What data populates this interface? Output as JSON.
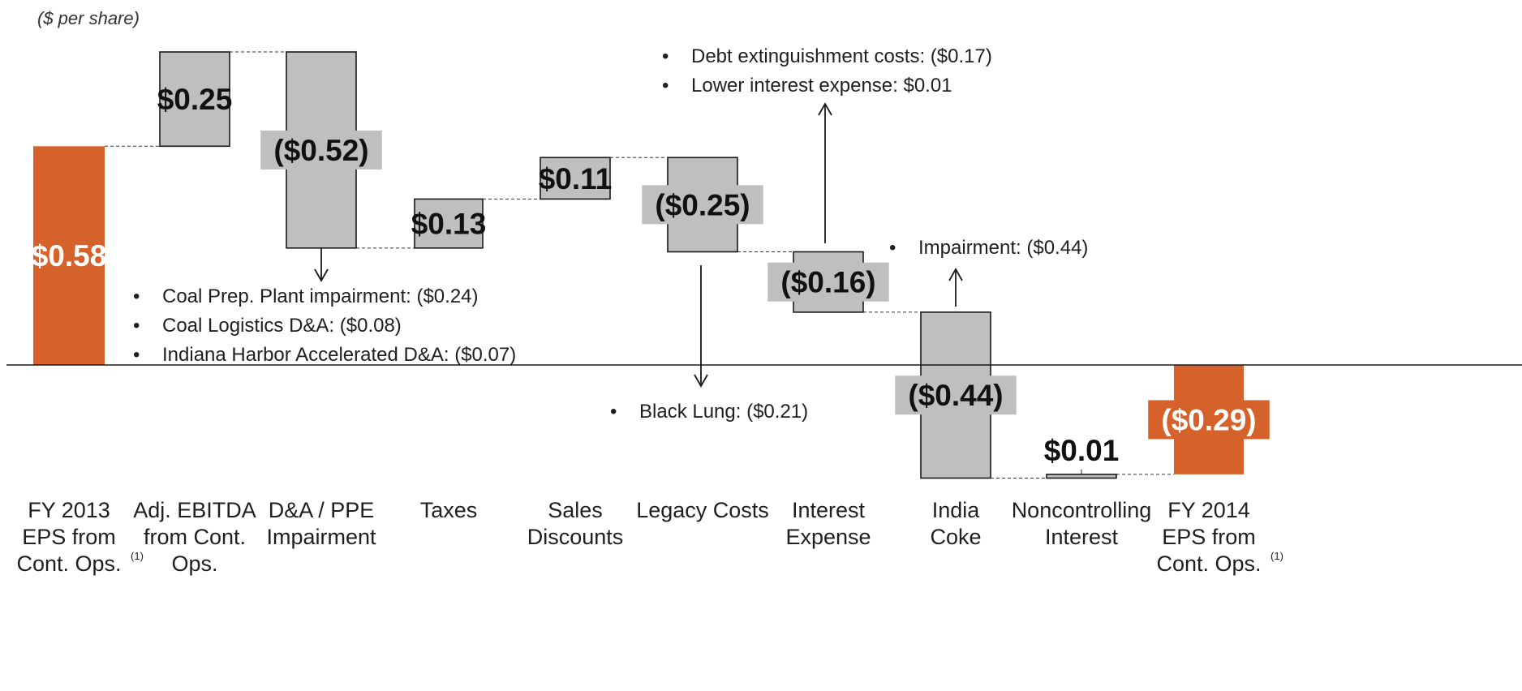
{
  "unit_note": "($ per share)",
  "colors": {
    "endpoint": "#d4622a",
    "step": "#bfbfbf",
    "label_bg": "#bfbfbf",
    "connector": "#333333"
  },
  "chart_data": {
    "type": "bar",
    "subtype": "waterfall",
    "categories": [
      "FY 2013 EPS from Cont. Ops.(1)",
      "Adj. EBITDA from Cont. Ops.",
      "D&A / PPE Impairment",
      "Taxes",
      "Sales Discounts",
      "Legacy Costs",
      "Interest Expense",
      "India Coke",
      "Noncontrolling Interest",
      "FY 2014 EPS from Cont. Ops.(1)"
    ],
    "category_lines": [
      [
        "FY 2013",
        "EPS from",
        "Cont. Ops."
      ],
      [
        "Adj. EBITDA",
        "from Cont.",
        "Ops."
      ],
      [
        "D&A / PPE",
        "Impairment"
      ],
      [
        "Taxes"
      ],
      [
        "Sales",
        "Discounts"
      ],
      [
        "Legacy Costs"
      ],
      [
        "Interest",
        "Expense"
      ],
      [
        "India",
        "Coke"
      ],
      [
        "Noncontrolling",
        "Interest"
      ],
      [
        "FY 2014",
        "EPS from",
        "Cont. Ops."
      ]
    ],
    "category_superscripts": [
      "(1)",
      "",
      "",
      "",
      "",
      "",
      "",
      "",
      "",
      "(1)"
    ],
    "values": [
      0.58,
      0.25,
      -0.52,
      0.13,
      0.11,
      -0.25,
      -0.16,
      -0.44,
      0.01,
      -0.29
    ],
    "kinds": [
      "total",
      "step",
      "step",
      "step",
      "step",
      "step",
      "step",
      "step",
      "step",
      "total"
    ],
    "data_labels": [
      "$0.58",
      "$0.25",
      "($0.52)",
      "$0.13",
      "$0.11",
      "($0.25)",
      "($0.16)",
      "($0.44)",
      "$0.01",
      "($0.29)"
    ],
    "ylabel": "($ per share)",
    "ylim": [
      -0.32,
      0.85
    ],
    "grid": false,
    "legend": "none",
    "annotations": [
      {
        "id": "da",
        "category": "D&A / PPE Impairment",
        "direction": "down",
        "items": [
          "Coal Prep. Plant impairment: ($0.24)",
          "Coal Logistics D&A: ($0.08)",
          "Indiana Harbor Accelerated D&A: ($0.07)"
        ]
      },
      {
        "id": "legacy",
        "category": "Legacy Costs",
        "direction": "down",
        "items": [
          "Black Lung: ($0.21)"
        ]
      },
      {
        "id": "interest",
        "category": "Interest Expense",
        "direction": "up",
        "items": [
          "Debt extinguishment costs: ($0.17)",
          "Lower interest expense: $0.01"
        ]
      },
      {
        "id": "india",
        "category": "India Coke",
        "direction": "up",
        "items": [
          "Impairment: ($0.44)"
        ]
      }
    ]
  }
}
